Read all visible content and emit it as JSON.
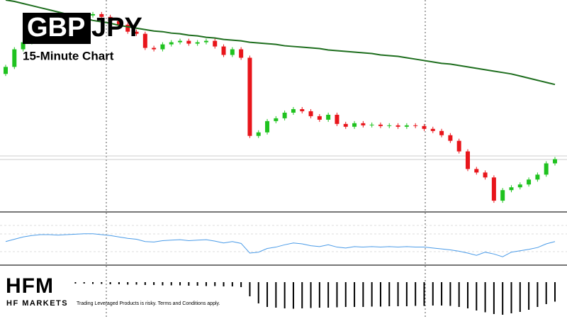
{
  "chart_data": {
    "type": "candlestick",
    "title_parts": [
      "GBP",
      "JPY"
    ],
    "subtitle": "15-Minute Chart",
    "ylim": [
      0,
      300
    ],
    "open": [
      195,
      205,
      230,
      240,
      255,
      265,
      270,
      268,
      272,
      275,
      278,
      280,
      276,
      270,
      265,
      255,
      252,
      232,
      230,
      237,
      240,
      242,
      238,
      240,
      242,
      234,
      222,
      230,
      218,
      107,
      112,
      128,
      132,
      140,
      145,
      142,
      135,
      130,
      137,
      124,
      120,
      125,
      122,
      123,
      121,
      122,
      120,
      122,
      121,
      117,
      114,
      108,
      100,
      85,
      60,
      55,
      48,
      15,
      30,
      34,
      38,
      45,
      52,
      68
    ],
    "close": [
      205,
      230,
      240,
      255,
      265,
      270,
      268,
      272,
      275,
      278,
      280,
      276,
      270,
      265,
      255,
      252,
      232,
      230,
      237,
      240,
      242,
      238,
      240,
      242,
      234,
      222,
      230,
      218,
      107,
      112,
      128,
      132,
      140,
      145,
      142,
      135,
      130,
      137,
      124,
      120,
      125,
      122,
      123,
      121,
      122,
      120,
      122,
      121,
      117,
      114,
      108,
      100,
      85,
      60,
      55,
      48,
      15,
      30,
      34,
      38,
      45,
      52,
      68,
      74
    ],
    "up_color": "#1fc21f",
    "down_color": "#e8151b",
    "ma": {
      "color": "#1e6e1e",
      "values": [
        300,
        298,
        295,
        292,
        289,
        286,
        283,
        280,
        277,
        274,
        271,
        269,
        267,
        264,
        262,
        260,
        258,
        256,
        255,
        253,
        252,
        250,
        249,
        247,
        246,
        244,
        243,
        242,
        240,
        239,
        238,
        237,
        235,
        234,
        233,
        232,
        231,
        229,
        228,
        227,
        226,
        225,
        224,
        222,
        221,
        220,
        218,
        216,
        214,
        212,
        210,
        209,
        207,
        205,
        203,
        201,
        199,
        197,
        195,
        192,
        189,
        186,
        183,
        180
      ]
    },
    "indicator": {
      "color": "#4a9be8",
      "ylim": [
        0,
        100
      ],
      "values": [
        45,
        50,
        55,
        58,
        60,
        60,
        59,
        60,
        61,
        62,
        62,
        60,
        58,
        55,
        52,
        50,
        45,
        44,
        47,
        48,
        49,
        47,
        48,
        49,
        46,
        42,
        45,
        41,
        20,
        22,
        30,
        33,
        38,
        42,
        40,
        36,
        34,
        38,
        33,
        31,
        34,
        33,
        34,
        33,
        34,
        33,
        34,
        33,
        33,
        31,
        29,
        27,
        24,
        20,
        15,
        22,
        18,
        12,
        22,
        25,
        28,
        32,
        40,
        45
      ]
    },
    "histogram": {
      "color": "#000000",
      "ylim": [
        -100,
        0
      ],
      "values": [
        -8,
        -6,
        -5,
        -4,
        -4,
        -3,
        -3,
        -3,
        -4,
        -4,
        -5,
        -5,
        -6,
        -6,
        -7,
        -7,
        -8,
        -8,
        -9,
        -9,
        -9,
        -10,
        -10,
        -11,
        -11,
        -12,
        -12,
        -14,
        -40,
        -60,
        -70,
        -72,
        -74,
        -75,
        -74,
        -73,
        -72,
        -72,
        -71,
        -70,
        -70,
        -70,
        -69,
        -69,
        -68,
        -68,
        -68,
        -67,
        -67,
        -66,
        -66,
        -67,
        -70,
        -74,
        -80,
        -85,
        -90,
        -92,
        -88,
        -84,
        -78,
        -70,
        -62,
        -55
      ]
    }
  },
  "brand": {
    "logo": "HFM",
    "name": "HF MARKETS",
    "disclaimer": "Trading Leveraged Products is risky. Terms and Conditions apply."
  }
}
